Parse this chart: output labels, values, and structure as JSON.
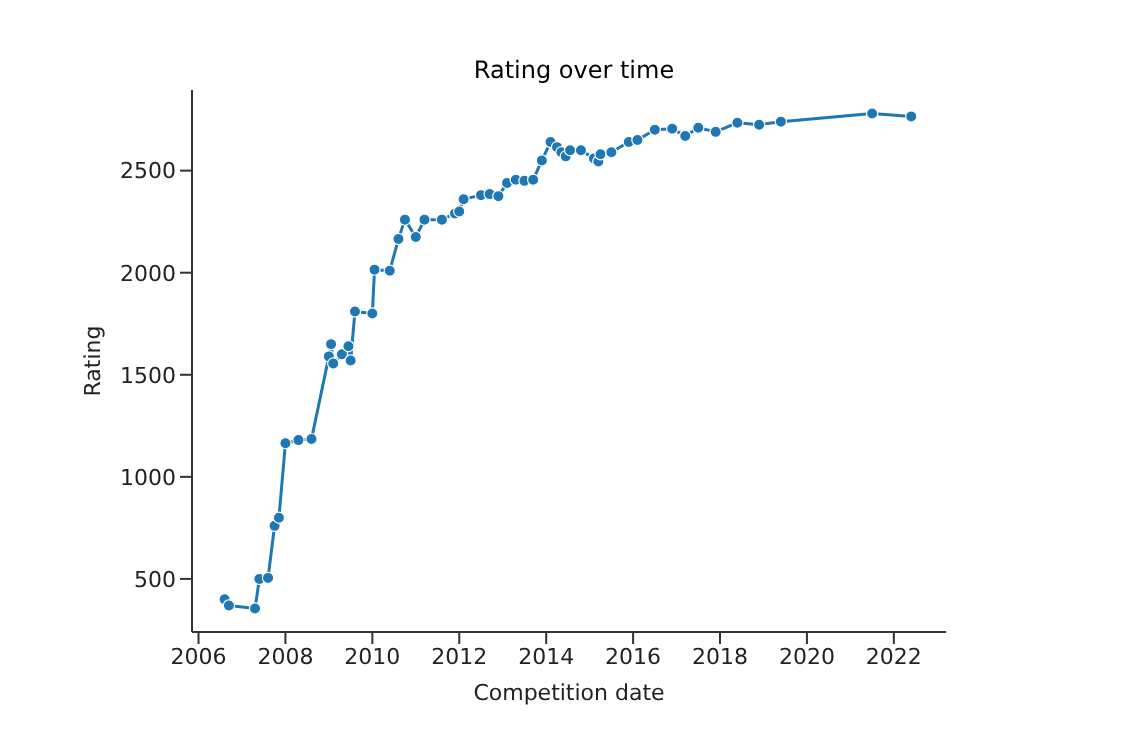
{
  "chart_data": {
    "type": "line",
    "title": "Rating over time",
    "xlabel": "Competition date",
    "ylabel": "Rating",
    "x": [
      2006.6,
      2006.7,
      2007.3,
      2007.4,
      2007.6,
      2007.75,
      2007.85,
      2008.0,
      2008.3,
      2008.6,
      2009.0,
      2009.05,
      2009.1,
      2009.3,
      2009.45,
      2009.5,
      2009.6,
      2010.0,
      2010.05,
      2010.4,
      2010.6,
      2010.75,
      2011.0,
      2011.2,
      2011.6,
      2011.9,
      2012.0,
      2012.1,
      2012.5,
      2012.7,
      2012.9,
      2013.1,
      2013.3,
      2013.5,
      2013.7,
      2013.9,
      2014.1,
      2014.25,
      2014.35,
      2014.45,
      2014.55,
      2014.8,
      2015.1,
      2015.2,
      2015.25,
      2015.5,
      2015.9,
      2016.1,
      2016.5,
      2016.9,
      2017.2,
      2017.5,
      2017.9,
      2018.4,
      2018.9,
      2019.4,
      2021.5,
      2022.4
    ],
    "series": [
      {
        "color": "#1f77b4",
        "values": [
          400,
          370,
          355,
          500,
          505,
          760,
          800,
          1165,
          1180,
          1185,
          1590,
          1650,
          1555,
          1600,
          1640,
          1570,
          1810,
          1800,
          2015,
          2010,
          2165,
          2260,
          2175,
          2260,
          2260,
          2290,
          2300,
          2360,
          2380,
          2385,
          2375,
          2440,
          2455,
          2450,
          2455,
          2550,
          2640,
          2615,
          2590,
          2570,
          2600,
          2600,
          2560,
          2545,
          2580,
          2590,
          2640,
          2650,
          2700,
          2705,
          2670,
          2710,
          2690,
          2735,
          2725,
          2740,
          2780,
          2765
        ]
      }
    ],
    "xlim": [
      2005.85,
      2023.2
    ],
    "xticks": [
      2006,
      2008,
      2010,
      2012,
      2014,
      2016,
      2018,
      2020,
      2022
    ],
    "ylim": [
      240,
      2895
    ],
    "yticks": [
      500,
      1000,
      1500,
      2000,
      2500
    ],
    "marker": "circle",
    "line_style": "solid",
    "grid": false,
    "legend": false
  }
}
